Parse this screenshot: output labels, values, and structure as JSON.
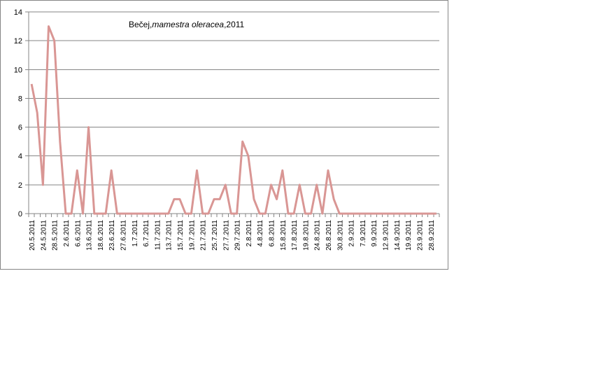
{
  "chart_data": {
    "type": "line",
    "title": {
      "prefix": "Bečej,",
      "italic": "mamestra oleracea",
      "suffix": ",2011"
    },
    "xlabel": "",
    "ylabel": "",
    "ylim": [
      0,
      14
    ],
    "yticks": [
      0,
      2,
      4,
      6,
      8,
      10,
      12,
      14
    ],
    "grid": "horizontal",
    "legend": "none",
    "color": "#D99694",
    "x_tick_labels": [
      "20.5.2011",
      "24.5.2011",
      "28.5.2011",
      "2.6.2011",
      "6.6.2011",
      "13.6.2011",
      "18.6.2011",
      "23.6.2011",
      "27.6.2011",
      "1.7.2011",
      "6.7.2011",
      "11.7.2011",
      "13.7.2011",
      "15.7.2011",
      "19.7.2011",
      "21.7.2011",
      "25.7.2011",
      "27.7.2011",
      "29.7.2011",
      "2.8.2011",
      "4.8.2011",
      "6.8.2011",
      "15.8.2011",
      "17.8.2011",
      "19.8.2011",
      "24.8.2011",
      "26.8.2011",
      "30.8.2011",
      "2.9.2011",
      "7.9.2011",
      "9.9.2011",
      "12.9.2011",
      "14.9.2011",
      "19.9.2011",
      "23.9.2011",
      "28.9.2011"
    ],
    "series": [
      {
        "values": [
          9,
          7,
          2,
          13,
          12,
          5,
          0,
          0,
          3,
          0,
          6,
          0,
          0,
          0,
          3,
          0,
          0,
          0,
          0,
          0,
          0,
          0,
          0,
          0,
          0,
          1,
          1,
          0,
          0,
          3,
          0,
          0,
          1,
          1,
          2,
          0,
          0,
          5,
          4,
          1,
          0,
          0,
          2,
          1,
          3,
          0,
          0,
          2,
          0,
          0,
          2,
          0,
          3,
          1,
          0,
          0,
          0,
          0,
          0,
          0,
          0,
          0,
          0,
          0,
          0,
          0,
          0,
          0,
          0,
          0,
          0,
          0
        ]
      }
    ]
  }
}
